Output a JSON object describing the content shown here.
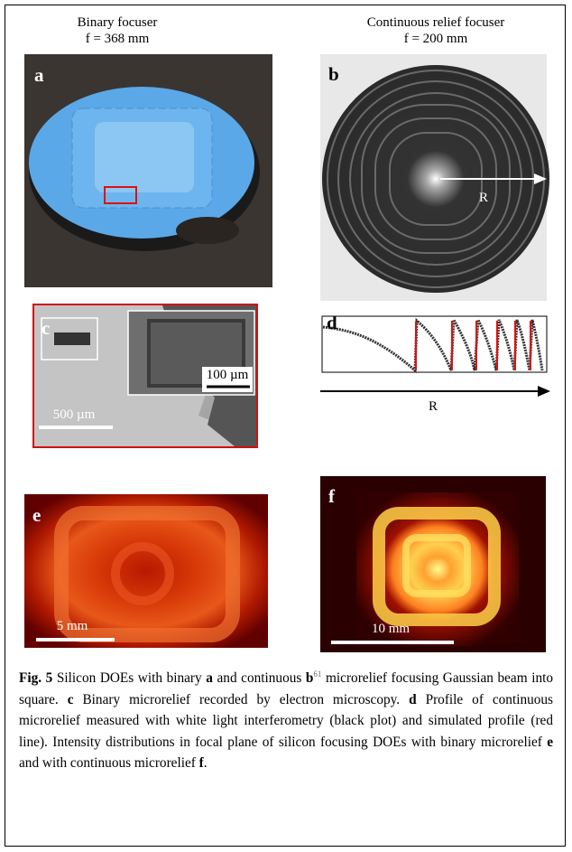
{
  "figure": {
    "columns": [
      {
        "heading": "Binary focuser",
        "focal": "f = 368 mm"
      },
      {
        "heading": "Continuous relief focuser",
        "focal": "f = 200 mm"
      }
    ],
    "panels": {
      "a": {
        "label": "a"
      },
      "b": {
        "label": "b",
        "axis": "R"
      },
      "c": {
        "label": "c",
        "inset_scale": "100 µm",
        "scale": "500 µm"
      },
      "d": {
        "label": "d",
        "axis": "R"
      },
      "e": {
        "label": "e",
        "scale": "5 mm"
      },
      "f": {
        "label": "f",
        "scale": "10 mm"
      }
    },
    "caption": [
      {
        "text": "Fig. 5",
        "style": "bold"
      },
      {
        "text": " Silicon DOEs with binary ",
        "style": "normal"
      },
      {
        "text": "a",
        "style": "bold"
      },
      {
        "text": " and continuous ",
        "style": "normal"
      },
      {
        "text": "b",
        "style": "bold"
      },
      {
        "text": "61",
        "style": "superscript"
      },
      {
        "text": " microrelief focusing Gaussian beam into square. ",
        "style": "normal"
      },
      {
        "text": "c",
        "style": "bold"
      },
      {
        "text": " Binary microrelief recorded by electron microscopy. ",
        "style": "normal"
      },
      {
        "text": "d",
        "style": "bold"
      },
      {
        "text": " Profile of continuous microrelief measured with white light interferometry (black plot) and simulated profile (red line). Intensity distributions in focal plane of silicon focusing DOEs with binary microrelief ",
        "style": "normal"
      },
      {
        "text": "e",
        "style": "bold"
      },
      {
        "text": " and with continuous microrelief ",
        "style": "normal"
      },
      {
        "text": "f",
        "style": "bold"
      },
      {
        "text": ".",
        "style": "normal"
      }
    ]
  }
}
